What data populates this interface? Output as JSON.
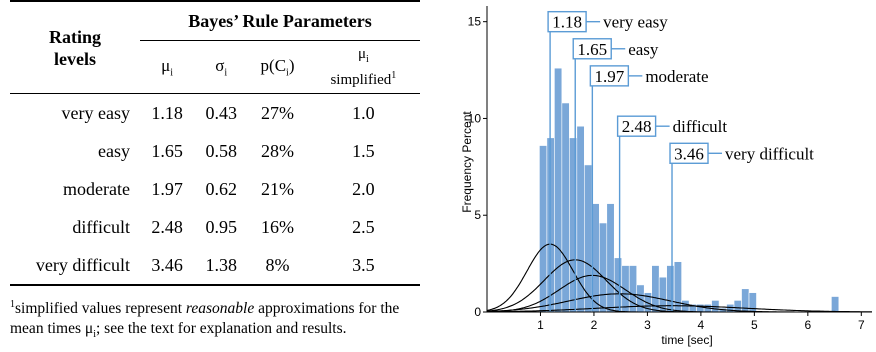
{
  "table": {
    "group_header": "Bayes’ Rule Parameters",
    "rating_header_line1": "Rating",
    "rating_header_line2": "levels",
    "col_mu": "μ",
    "col_mu_sub": "i",
    "col_sigma": "σ",
    "col_sigma_sub": "i",
    "col_p_pre": "p(C",
    "col_p_sub": "i",
    "col_p_post": ")",
    "col_simpl_mu": "μ",
    "col_simpl_sub": "i",
    "col_simpl_word": "simplified",
    "col_simpl_sup": "1",
    "rows": [
      {
        "level": "very easy",
        "mu": "1.18",
        "sigma": "0.43",
        "p": "27%",
        "simplified": "1.0"
      },
      {
        "level": "easy",
        "mu": "1.65",
        "sigma": "0.58",
        "p": "28%",
        "simplified": "1.5"
      },
      {
        "level": "moderate",
        "mu": "1.97",
        "sigma": "0.62",
        "p": "21%",
        "simplified": "2.0"
      },
      {
        "level": "difficult",
        "mu": "2.48",
        "sigma": "0.95",
        "p": "16%",
        "simplified": "2.5"
      },
      {
        "level": "very difficult",
        "mu": "3.46",
        "sigma": "1.38",
        "p": "8%",
        "simplified": "3.5"
      }
    ]
  },
  "footnote": {
    "sup": "1",
    "text_a": "simplified values represent ",
    "text_em": "reasonable",
    "text_b": " approximations for the mean times μ",
    "text_sub": "i",
    "text_c": "; see the text for explanation and results."
  },
  "chart_data": {
    "type": "bar",
    "xlabel": "time [sec]",
    "ylabel": "Frequency Percent",
    "xlim": [
      0,
      7.2
    ],
    "ylim": [
      0,
      15.5
    ],
    "xticks": [
      1,
      2,
      3,
      4,
      5,
      6,
      7
    ],
    "yticks": [
      0,
      5,
      10,
      15
    ],
    "bar_color": "#7aa7d8",
    "bin_width": 0.14,
    "bins": [
      {
        "x": 0.98,
        "value": 8.6
      },
      {
        "x": 1.12,
        "value": 9.0
      },
      {
        "x": 1.26,
        "value": 12.6
      },
      {
        "x": 1.4,
        "value": 10.8
      },
      {
        "x": 1.54,
        "value": 9.0
      },
      {
        "x": 1.68,
        "value": 9.6
      },
      {
        "x": 1.82,
        "value": 7.6
      },
      {
        "x": 1.96,
        "value": 5.6
      },
      {
        "x": 2.1,
        "value": 4.6
      },
      {
        "x": 2.24,
        "value": 5.6
      },
      {
        "x": 2.38,
        "value": 2.8
      },
      {
        "x": 2.52,
        "value": 2.4
      },
      {
        "x": 2.66,
        "value": 2.4
      },
      {
        "x": 2.8,
        "value": 1.4
      },
      {
        "x": 2.94,
        "value": 1.0
      },
      {
        "x": 3.08,
        "value": 2.4
      },
      {
        "x": 3.22,
        "value": 1.8
      },
      {
        "x": 3.36,
        "value": 2.4
      },
      {
        "x": 3.5,
        "value": 2.6
      },
      {
        "x": 3.64,
        "value": 0.6
      },
      {
        "x": 3.78,
        "value": 0.4
      },
      {
        "x": 3.92,
        "value": 0.4
      },
      {
        "x": 4.06,
        "value": 0.4
      },
      {
        "x": 4.2,
        "value": 0.6
      },
      {
        "x": 4.34,
        "value": 0.2
      },
      {
        "x": 4.48,
        "value": 0.4
      },
      {
        "x": 4.62,
        "value": 0.6
      },
      {
        "x": 4.76,
        "value": 1.2
      },
      {
        "x": 4.9,
        "value": 1.0
      },
      {
        "x": 6.44,
        "value": 0.8
      }
    ],
    "curves": [
      {
        "mu": 1.18,
        "sigma": 0.43,
        "p": 0.27
      },
      {
        "mu": 1.65,
        "sigma": 0.58,
        "p": 0.28
      },
      {
        "mu": 1.97,
        "sigma": 0.62,
        "p": 0.21
      },
      {
        "mu": 2.48,
        "sigma": 0.95,
        "p": 0.16
      },
      {
        "mu": 3.46,
        "sigma": 1.38,
        "p": 0.08
      }
    ],
    "annotations": [
      {
        "value": "1.18",
        "label": "very easy",
        "at_y": 13.7,
        "text_y": 15.0
      },
      {
        "value": "1.65",
        "label": "easy",
        "at_y": 12.6,
        "text_y": 13.6
      },
      {
        "value": "1.97",
        "label": "moderate",
        "at_y": 11.7,
        "text_y": 12.2
      },
      {
        "value": "2.48",
        "label": "difficult",
        "at_y": 9.2,
        "text_y": 9.6
      },
      {
        "value": "3.46",
        "label": "very difficult",
        "at_y": 8.0,
        "text_y": 8.2
      }
    ],
    "annotation_color": "#5b9bd5"
  }
}
